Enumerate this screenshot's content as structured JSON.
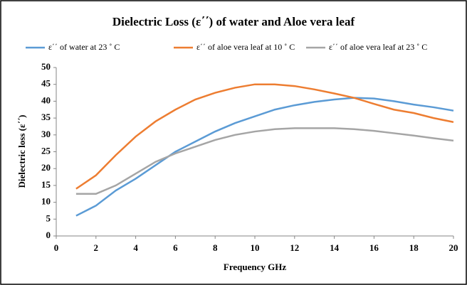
{
  "chart_data": {
    "type": "line",
    "title": "Dielectric Loss (ε΄΄) of water and Aloe vera leaf",
    "x_label": "Frequency GHz",
    "y_label": "Dielectric loss (ε΄΄)",
    "x": [
      1,
      2,
      3,
      4,
      5,
      6,
      7,
      8,
      9,
      10,
      11,
      12,
      13,
      14,
      15,
      16,
      17,
      18,
      19,
      20
    ],
    "series": [
      {
        "name": "ε΄΄ of water at 23 ˚ C",
        "color": "#5b9bd5",
        "values": [
          6,
          9,
          13.5,
          17,
          21,
          25,
          28,
          31,
          33.5,
          35.5,
          37.5,
          38.8,
          39.8,
          40.5,
          41,
          40.8,
          40,
          39,
          38.2,
          37.2
        ]
      },
      {
        "name": "ε΄΄ of aloe vera leaf at 10 ˚ C",
        "color": "#ed7d31",
        "values": [
          14,
          18,
          24,
          29.5,
          34,
          37.5,
          40.5,
          42.5,
          44,
          45,
          45,
          44.5,
          43.5,
          42.3,
          41,
          39.2,
          37.5,
          36.5,
          35,
          33.8
        ]
      },
      {
        "name": "ε΄΄ of aloe vera leaf at 23 ˚ C",
        "color": "#a5a5a5",
        "values": [
          12.5,
          12.5,
          15,
          18.5,
          22,
          24.5,
          26.5,
          28.5,
          30,
          31,
          31.7,
          32,
          32,
          32,
          31.7,
          31.2,
          30.5,
          29.8,
          29,
          28.3
        ]
      }
    ],
    "xlim": [
      0,
      20
    ],
    "xticks": [
      0,
      2,
      4,
      6,
      8,
      10,
      12,
      14,
      16,
      18,
      20
    ],
    "ylim": [
      0,
      50
    ],
    "yticks": [
      0,
      5,
      10,
      15,
      20,
      25,
      30,
      35,
      40,
      45,
      50
    ],
    "legend": "top"
  }
}
